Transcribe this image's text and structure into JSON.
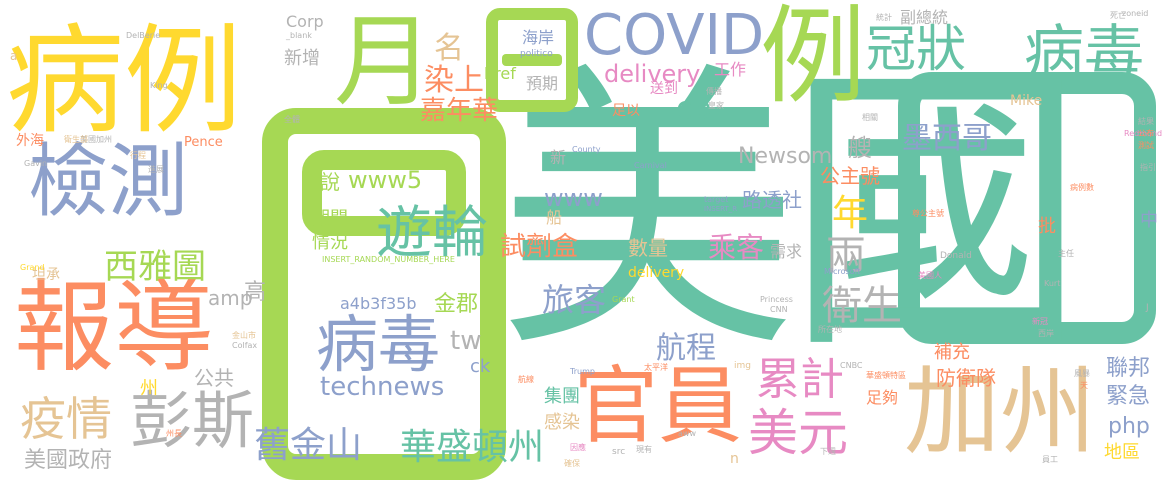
{
  "words": {
    "meiguo": "美國",
    "bingli": "病例",
    "yue": "月",
    "ri_small": "日",
    "covid": "COVID",
    "li": "例",
    "guanzhuang": "冠狀",
    "bingdu_top": "病毒",
    "jiance": "檢測",
    "baodao": "報導",
    "guanyuan": "官員",
    "jiazhou": "加州",
    "yiqing": "疫情",
    "pengsi": "彭斯",
    "jiujinshan": "舊金山",
    "huashengdunzhou": "華盛頓州",
    "meiyuan": "美元",
    "youlun": "遊輪",
    "bingdu_mid": "病毒",
    "technews": "technews",
    "www5": "www5",
    "a4b3": "a4b3f35b",
    "jinjun": "金郡",
    "tw": "tw",
    "shuo": "說",
    "qijian": "期間",
    "qingkuang": "情況",
    "xinzeng": "新增",
    "ming": "名",
    "ranshang": "染上",
    "jianianhua": "嘉年華",
    "corp": "Corp",
    "delivery_big": "delivery",
    "gongzuo": "工作",
    "cb": "cb",
    "www": "www",
    "shijihe": "試劑盒",
    "xiyatu": "西雅圖",
    "amp": "amp",
    "lvke": "旅客",
    "hangcheng": "航程",
    "leiji": "累計",
    "weisheng": "衛生",
    "moxige": "墨西哥",
    "newsom": "Newsom",
    "gongzhuhao": "公主號",
    "lutoushe": "路透社",
    "nian": "年",
    "liang": "兩",
    "chengke": "乘客",
    "xuqiu": "需求",
    "shuliang": "數量",
    "delivery_small": "delivery",
    "gonggong": "公共",
    "gao": "高",
    "php": "php",
    "zhou": "州",
    "meiguozhengfu": "美國政府",
    "jituan": "集團",
    "ganran": "感染",
    "ck": "ck",
    "fangweidui": "防衛隊",
    "zugou": "足夠",
    "lianbang": "聯邦",
    "jinji": "緊急",
    "diqu": "地區",
    "buchong": "補充",
    "pi": "批",
    "zhong": "中",
    "fuzongtong": "副總統",
    "mike": "Mike",
    "href": "href",
    "haian": "海岸",
    "politico": "politico",
    "yuqi": "預期",
    "songdao": "送到",
    "zuyi": "足以",
    "pence": "Pence",
    "waihai": "外海",
    "tancheng": "坦承",
    "chuan": "船",
    "xin": "新",
    "sou": "艘",
    "insert_random": "INSERT_RANDOM_NUMBER_HERE",
    "donald": "Donald",
    "carnival": "Carnival",
    "county": "County",
    "microsoft": "Microsoft",
    "princess": "Princess",
    "grant": "Grant",
    "cnn": "CNN",
    "trump": "Trump",
    "img": "img",
    "cnbc": "CNBC",
    "kurt": "Kurt",
    "gavin": "Gavin",
    "grand": "Grand",
    "king": "King",
    "src": "src",
    "aww": "aww",
    "n": "n",
    "j": "J",
    "a": "a",
    "zoneid": "zoneid",
    "redmond": "Redmond",
    "target": "target",
    "insert_r": "INSERT_R",
    "blank": "_blank",
    "delberie": "DelBerie",
    "colfax": "Colfax",
    "jinshanshi": "金山市",
    "meiguojiazhou": "美國加州",
    "weishengbu": "衛生部",
    "xingcheng": "行程",
    "jinxing": "進展",
    "siwang": "死亡",
    "jiuren": "救人",
    "meiguoren": "美國人",
    "xiyangju": "西岸",
    "duinei": "隊內",
    "shiwei": "示威",
    "tongzhi": "通知",
    "tiyao": "提要",
    "xiangguan": "相關",
    "tongji": "統計",
    "zhuren": "主任",
    "zhiyin": "指引",
    "gongbu": "公布",
    "ceshi": "測試",
    "jieguo": "結果",
    "guojia": "國家",
    "yiwai": "以外",
    "shiyou": "石油",
    "tianfan": "天",
    "xiajiang": "下去",
    "fenghao": "風暴",
    "yuangong": "員工",
    "quanti": "全體",
    "shoucha": "受查",
    "zhuyi": "注意",
    "jiaoyi": "交易",
    "yuanhui": "遠回",
    "shi": "石",
    "chuanbo": "傳播",
    "huangjia": "皇家",
    "baomi": "保密",
    "zhuanban": "專案",
    "jingjian": "精簡",
    "suoyou": "所在地",
    "zhiyuan": "支援",
    "quebao": "確保",
    "yinsu": "因應",
    "xianyou": "現有",
    "sheyin": "社區",
    "xiazhou": "下週",
    "zhangtong": "州長",
    "kuaiyuan": "快援",
    "zhuang": "狀",
    "fenliu": "分流",
    "bulao": "不",
    "hangxian": "航線",
    "ganshen": "感受",
    "duiyu": "對於",
    "qianghua": "強化",
    "zhengzai": "正在",
    "chengxiang": "城鄉",
    "mangluo": "忙碌",
    "ganlu": "港口",
    "kaishi": "開始",
    "xiaoxi": "消息",
    "faguan": "法官",
    "zhenpian": "診斷",
    "duozhong": "多重",
    "yeye": "葉",
    "zhuan": "轉",
    "lianbang_small": "聯邦政府",
    "shiji": "實際",
    "jiantao": "檢討",
    "jianjie": "簡介",
    "zhuangshi": "裝飾",
    "zhaopian": "照片",
    "fangzhi": "防止",
    "yixing": "一行",
    "shiyan": "實驗",
    "jiaotong": "交通",
    "feiji": "飛機",
    "zhongxin": "中心",
    "lvxing": "旅行",
    "zhongshen": "重申",
    "bingli_shu": "病例數",
    "zun_gongzhuhao": "尊公主號",
    "guoneng": "國能",
    "xin_guan": "新冠",
    "huashengdun_te": "華盛頓特區",
    "kong": "恐慌",
    "taipingyang": "太平洋",
    "hudie": "蝴蝶",
    "ziwo": "自我",
    "jingshi": "警示",
    "yijia": "一家",
    "fuqiang": "富強",
    "guodu": "國度",
    "dangju": "當局"
  }
}
